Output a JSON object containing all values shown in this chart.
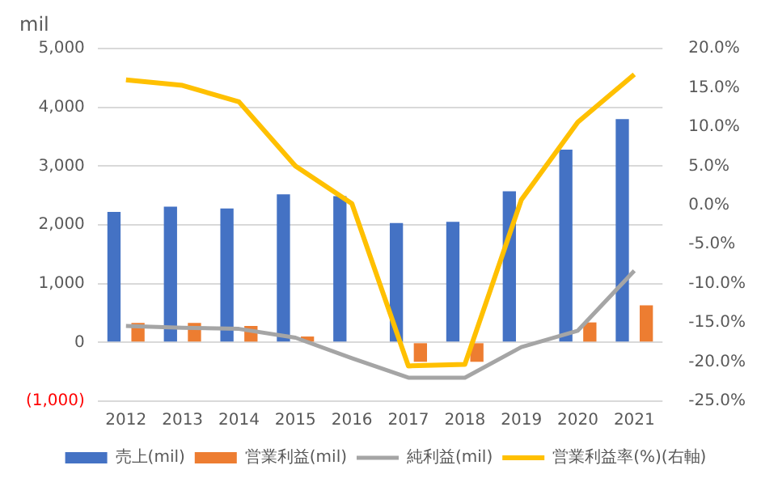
{
  "chart_data": {
    "type": "bar",
    "ylabel": "mil",
    "categories": [
      "2012",
      "2013",
      "2014",
      "2015",
      "2016",
      "2017",
      "2018",
      "2019",
      "2020",
      "2021"
    ],
    "series": [
      {
        "name": "売上(mil)",
        "color": "#4472c4",
        "values": [
          2220,
          2310,
          2280,
          2520,
          2490,
          2030,
          2050,
          2570,
          3280,
          3800
        ]
      },
      {
        "name": "営業利益(mil)",
        "color": "#ed7d31",
        "values": [
          330,
          330,
          280,
          100,
          null,
          -330,
          -330,
          null,
          340,
          630
        ]
      },
      {
        "name": "純利益(mil)",
        "type": "line",
        "color": "#a5a5a5",
        "values": [
          280,
          250,
          230,
          80,
          -270,
          -600,
          -600,
          -80,
          200,
          1220
        ]
      },
      {
        "name": "営業利益率(%)(右軸)",
        "type": "line",
        "axis": "y2",
        "color": "#ffc000",
        "values": [
          16.0,
          15.3,
          13.2,
          5.0,
          0.2,
          -20.5,
          -20.3,
          0.7,
          10.6,
          16.7
        ]
      }
    ],
    "ylim": [
      -1000,
      5000
    ],
    "yticks": [
      {
        "value": -1000,
        "label": "(1,000)"
      },
      {
        "value": 0,
        "label": "0"
      },
      {
        "value": 1000,
        "label": "1,000"
      },
      {
        "value": 2000,
        "label": "2,000"
      },
      {
        "value": 3000,
        "label": "3,000"
      },
      {
        "value": 4000,
        "label": "4,000"
      },
      {
        "value": 5000,
        "label": "5,000"
      }
    ],
    "y2lim": [
      -25,
      20
    ],
    "y2ticks": [
      {
        "value": -25,
        "label": "-25.0%"
      },
      {
        "value": -20,
        "label": "-20.0%"
      },
      {
        "value": -15,
        "label": "-15.0%"
      },
      {
        "value": -10,
        "label": "-10.0%"
      },
      {
        "value": -5,
        "label": "-5.0%"
      },
      {
        "value": 0,
        "label": "0.0%"
      },
      {
        "value": 5,
        "label": "5.0%"
      },
      {
        "value": 10,
        "label": "10.0%"
      },
      {
        "value": 15,
        "label": "15.0%"
      },
      {
        "value": 20,
        "label": "20.0%"
      }
    ],
    "grid": "y",
    "legend": "bottom",
    "marker": "none",
    "line_style": "solid"
  }
}
